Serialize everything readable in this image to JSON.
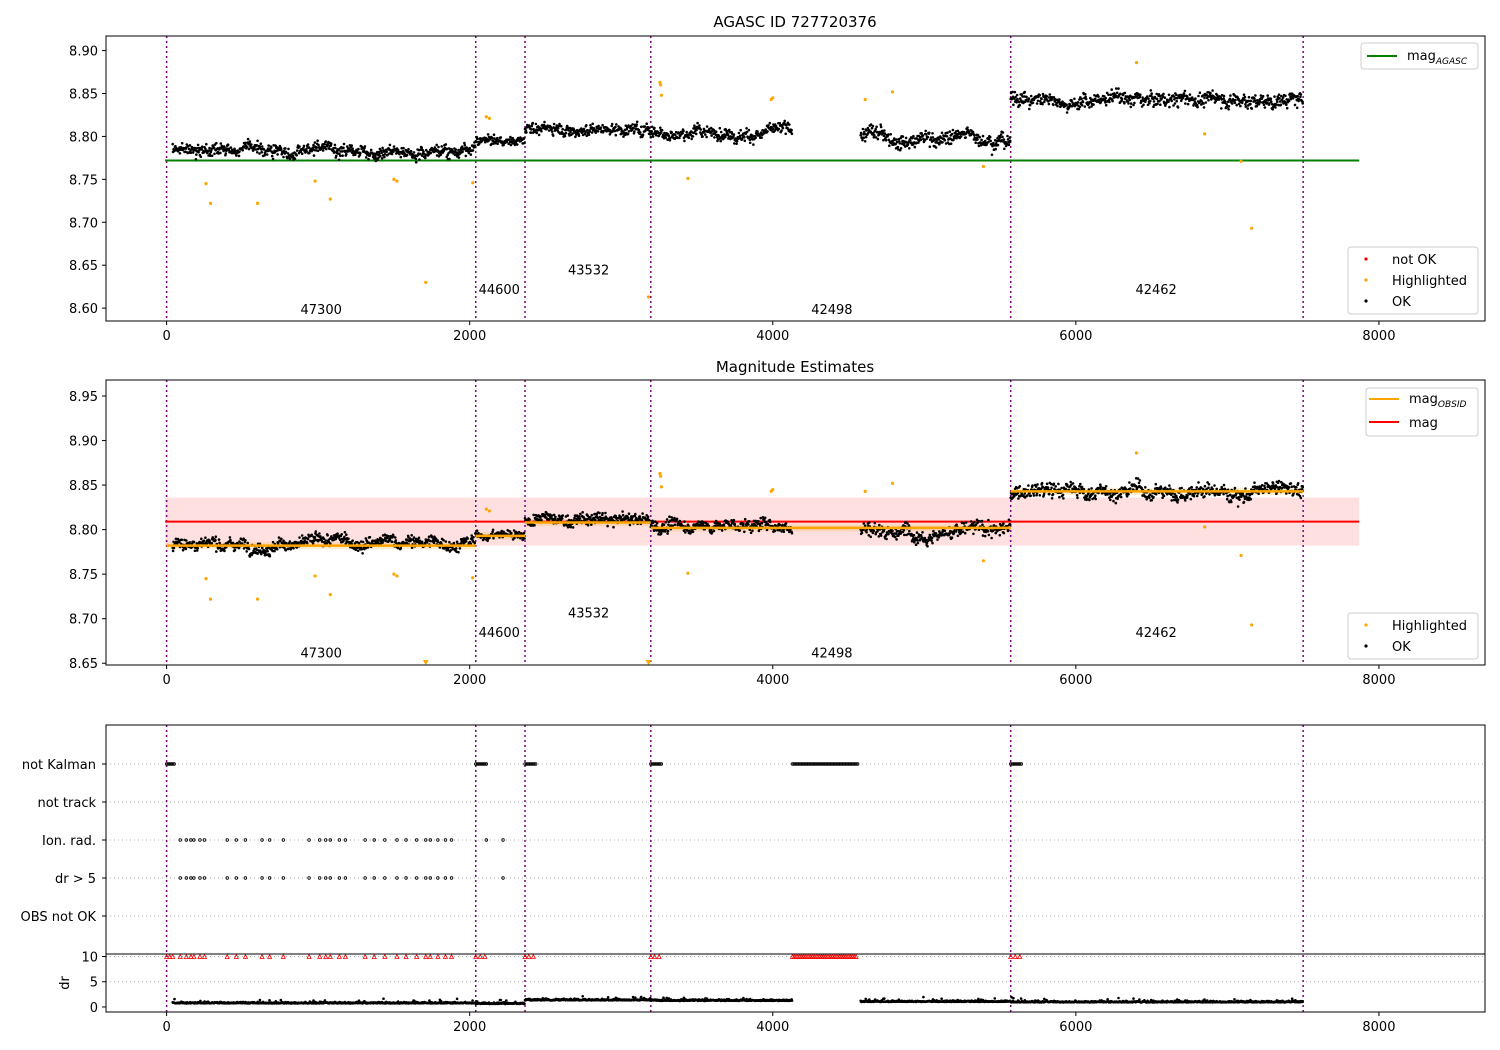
{
  "chart_data": [
    {
      "type": "scatter",
      "title": "AGASC ID 727720376",
      "xlim": [
        -400,
        8700
      ],
      "ylim": [
        8.585,
        8.917
      ],
      "xticks": [
        0,
        2000,
        4000,
        6000,
        8000
      ],
      "yticks": [
        8.6,
        8.65,
        8.7,
        8.75,
        8.8,
        8.85,
        8.9
      ],
      "obs_boundaries": [
        0,
        2040,
        2365,
        3195,
        5570,
        7500
      ],
      "obsid_labels": [
        {
          "text": "47300",
          "x": 1020,
          "y": 8.599
        },
        {
          "text": "44600",
          "x": 2195,
          "y": 8.622
        },
        {
          "text": "43532",
          "x": 2785,
          "y": 8.645
        },
        {
          "text": "42498",
          "x": 4390,
          "y": 8.599
        },
        {
          "text": "42462",
          "x": 6530,
          "y": 8.622
        }
      ],
      "segments": [
        {
          "x0": 40,
          "x1": 2040,
          "mean": 8.785,
          "amp": 0.012
        },
        {
          "x0": 2040,
          "x1": 2365,
          "mean": 8.795,
          "amp": 0.008
        },
        {
          "x0": 2365,
          "x1": 3195,
          "mean": 8.81,
          "amp": 0.012
        },
        {
          "x0": 3195,
          "x1": 4130,
          "mean": 8.805,
          "amp": 0.012
        },
        {
          "x0": 4580,
          "x1": 5570,
          "mean": 8.8,
          "amp": 0.014
        },
        {
          "x0": 5570,
          "x1": 7500,
          "mean": 8.843,
          "amp": 0.014
        }
      ],
      "reference_lines": [
        {
          "name": "mag_AGASC",
          "value": 8.772,
          "x0": -10,
          "x1": 7870,
          "color": "#008000"
        }
      ],
      "highlighted_points": [
        {
          "x": 260,
          "y": 8.745
        },
        {
          "x": 290,
          "y": 8.722
        },
        {
          "x": 600,
          "y": 8.722
        },
        {
          "x": 980,
          "y": 8.748
        },
        {
          "x": 1080,
          "y": 8.727
        },
        {
          "x": 1500,
          "y": 8.75
        },
        {
          "x": 1520,
          "y": 8.748
        },
        {
          "x": 1710,
          "y": 8.63
        },
        {
          "x": 2020,
          "y": 8.746
        },
        {
          "x": 2110,
          "y": 8.823
        },
        {
          "x": 2130,
          "y": 8.821
        },
        {
          "x": 3180,
          "y": 8.613
        },
        {
          "x": 3255,
          "y": 8.863
        },
        {
          "x": 3260,
          "y": 8.86
        },
        {
          "x": 3265,
          "y": 8.848
        },
        {
          "x": 3440,
          "y": 8.751
        },
        {
          "x": 3990,
          "y": 8.843
        },
        {
          "x": 4000,
          "y": 8.845
        },
        {
          "x": 4610,
          "y": 8.843
        },
        {
          "x": 4790,
          "y": 8.852
        },
        {
          "x": 5390,
          "y": 8.765
        },
        {
          "x": 6400,
          "y": 8.886
        },
        {
          "x": 6850,
          "y": 8.803
        },
        {
          "x": 7090,
          "y": 8.771
        },
        {
          "x": 7160,
          "y": 8.693
        }
      ],
      "legend_upper": [
        {
          "label": "mag",
          "sub": "AGASC",
          "color": "#008000"
        }
      ],
      "legend_lower": [
        {
          "label": "not OK",
          "color": "#ff0000"
        },
        {
          "label": "Highlighted",
          "color": "#ffa500"
        },
        {
          "label": "OK",
          "color": "#000000"
        }
      ],
      "legend_placement": [
        "upper right",
        "lower right"
      ]
    },
    {
      "type": "scatter",
      "title": "Magnitude Estimates",
      "xlim": [
        -400,
        8700
      ],
      "ylim": [
        8.648,
        8.968
      ],
      "xticks": [
        0,
        2000,
        4000,
        6000,
        8000
      ],
      "yticks": [
        8.65,
        8.7,
        8.75,
        8.8,
        8.85,
        8.9,
        8.95
      ],
      "obsid_labels": [
        {
          "text": "47300",
          "x": 1020,
          "y": 8.662
        },
        {
          "text": "44600",
          "x": 2195,
          "y": 8.685
        },
        {
          "text": "43532",
          "x": 2785,
          "y": 8.707
        },
        {
          "text": "42498",
          "x": 4390,
          "y": 8.662
        },
        {
          "text": "42462",
          "x": 6530,
          "y": 8.685
        }
      ],
      "mag_obsid": [
        {
          "x0": 0,
          "x1": 2040,
          "value": 8.782
        },
        {
          "x0": 2040,
          "x1": 2365,
          "value": 8.793
        },
        {
          "x0": 2365,
          "x1": 3195,
          "value": 8.808
        },
        {
          "x0": 3195,
          "x1": 5570,
          "value": 8.802
        },
        {
          "x0": 5570,
          "x1": 7500,
          "value": 8.843
        }
      ],
      "mag": {
        "value": 8.809,
        "band": [
          8.782,
          8.836
        ],
        "x0": -10,
        "x1": 7870,
        "color": "#ff0000"
      },
      "clipped_markers": [
        {
          "x": 1710
        },
        {
          "x": 3180
        }
      ],
      "legend_upper": [
        {
          "label": "mag",
          "sub": "OBSID",
          "color": "#ffa500"
        },
        {
          "label": "mag",
          "sub": "",
          "color": "#ff0000"
        }
      ],
      "legend_lower": [
        {
          "label": "Highlighted",
          "color": "#ffa500"
        },
        {
          "label": "OK",
          "color": "#000000"
        }
      ],
      "legend_placement": [
        "upper right",
        "lower right"
      ]
    },
    {
      "type": "scatter",
      "xlim": [
        -400,
        8700
      ],
      "flag_rows": [
        "not Kalman",
        "not track",
        "Ion. rad.",
        "dr > 5",
        "OBS not OK"
      ],
      "not_kalman_ranges": [
        [
          0,
          50
        ],
        [
          2040,
          2110
        ],
        [
          2365,
          2440
        ],
        [
          3195,
          3270
        ],
        [
          4130,
          4560
        ],
        [
          5570,
          5640
        ]
      ],
      "ion_rad_x": [
        90,
        130,
        160,
        180,
        220,
        250,
        400,
        460,
        520,
        630,
        680,
        770,
        940,
        1010,
        1050,
        1080,
        1140,
        1180,
        1310,
        1370,
        1440,
        1520,
        1580,
        1650,
        1710,
        1740,
        1790,
        1840,
        1880,
        2110,
        2220
      ],
      "dr_gt5_x": [
        90,
        130,
        160,
        180,
        220,
        250,
        400,
        460,
        520,
        630,
        680,
        770,
        940,
        1010,
        1050,
        1080,
        1140,
        1180,
        1310,
        1370,
        1440,
        1520,
        1580,
        1650,
        1710,
        1740,
        1790,
        1840,
        1880,
        2220
      ],
      "dr_axis": {
        "label": "dr",
        "yticks": [
          0,
          5,
          10
        ],
        "ylim": [
          -1,
          10.5
        ]
      },
      "dr_clipped_x": [
        0,
        20,
        40,
        90,
        130,
        160,
        180,
        220,
        250,
        400,
        460,
        520,
        630,
        680,
        770,
        940,
        1010,
        1050,
        1080,
        1140,
        1180,
        1310,
        1370,
        1440,
        1520,
        1580,
        1650,
        1710,
        1740,
        1790,
        1840,
        1880,
        2040,
        2070,
        2100,
        2365,
        2390,
        2420,
        3195,
        3220,
        3250,
        5570,
        5600,
        5630
      ],
      "dr_clipped_ranges": [
        [
          4130,
          4560
        ]
      ],
      "dr_segments": [
        {
          "x0": 40,
          "x1": 2040,
          "mean": 0.7
        },
        {
          "x0": 2040,
          "x1": 2365,
          "mean": 0.6
        },
        {
          "x0": 2365,
          "x1": 3195,
          "mean": 1.3
        },
        {
          "x0": 3195,
          "x1": 4130,
          "mean": 1.2
        },
        {
          "x0": 4580,
          "x1": 5570,
          "mean": 1.0
        },
        {
          "x0": 5570,
          "x1": 7500,
          "mean": 0.9
        }
      ]
    }
  ]
}
